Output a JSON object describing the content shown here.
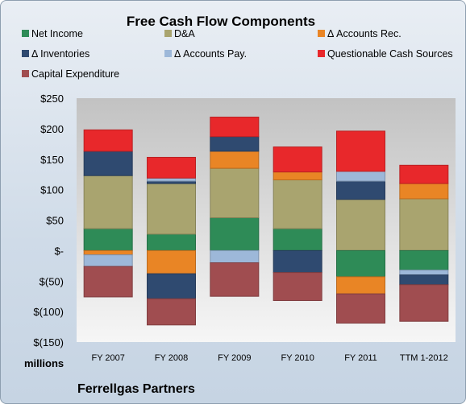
{
  "chart_data": {
    "type": "bar",
    "stacked": true,
    "title": "Free Cash Flow Components",
    "units_label": "millions",
    "company": "Ferrellgas Partners",
    "categories": [
      "FY 2007",
      "FY 2008",
      "FY 2009",
      "FY 2010",
      "FY 2011",
      "TTM 1-2012"
    ],
    "ylim": [
      -150,
      250
    ],
    "yticks": [
      250,
      200,
      150,
      100,
      50,
      0,
      -50,
      -100,
      -150
    ],
    "ytick_labels": [
      "$250",
      "$200",
      "$150",
      "$100",
      "$50",
      "$-",
      "$(50)",
      "$(100)",
      "$(150)"
    ],
    "grid": false,
    "legend_position": "top",
    "series": [
      {
        "name": "Net Income",
        "color": "#2e8b57",
        "values": [
          36,
          27,
          54,
          36,
          -43,
          -32
        ]
      },
      {
        "name": "D&A",
        "color": "#a9a46f",
        "values": [
          87,
          83,
          81,
          80,
          84,
          85
        ]
      },
      {
        "name": "Δ Accounts Rec.",
        "color": "#e98525",
        "values": [
          -7,
          -38,
          28,
          13,
          -28,
          25
        ]
      },
      {
        "name": "Δ Inventories",
        "color": "#2f4a70",
        "values": [
          40,
          4,
          24,
          0,
          30,
          0
        ]
      },
      {
        "name": "Δ Accounts Pay.",
        "color": "#9db8d9",
        "values": [
          -19,
          5,
          -20,
          0,
          16,
          -8
        ]
      },
      {
        "name": "Questionable Cash Sources",
        "color": "#e8282b",
        "values": [
          35,
          34,
          32,
          41,
          66,
          30
        ]
      },
      {
        "name": "Capital Expenditure",
        "color": "#a04d50",
        "values": [
          -50,
          -43,
          -55,
          -46,
          -48,
          -60
        ]
      }
    ],
    "extra_segments": [
      {
        "series": "Δ Inventories",
        "category": "FY 2008",
        "value": -41
      },
      {
        "series": "Δ Inventories",
        "category": "FY 2010",
        "value": -36
      },
      {
        "series": "Δ Inventories",
        "category": "TTM 1-2012",
        "value": -16
      }
    ]
  }
}
